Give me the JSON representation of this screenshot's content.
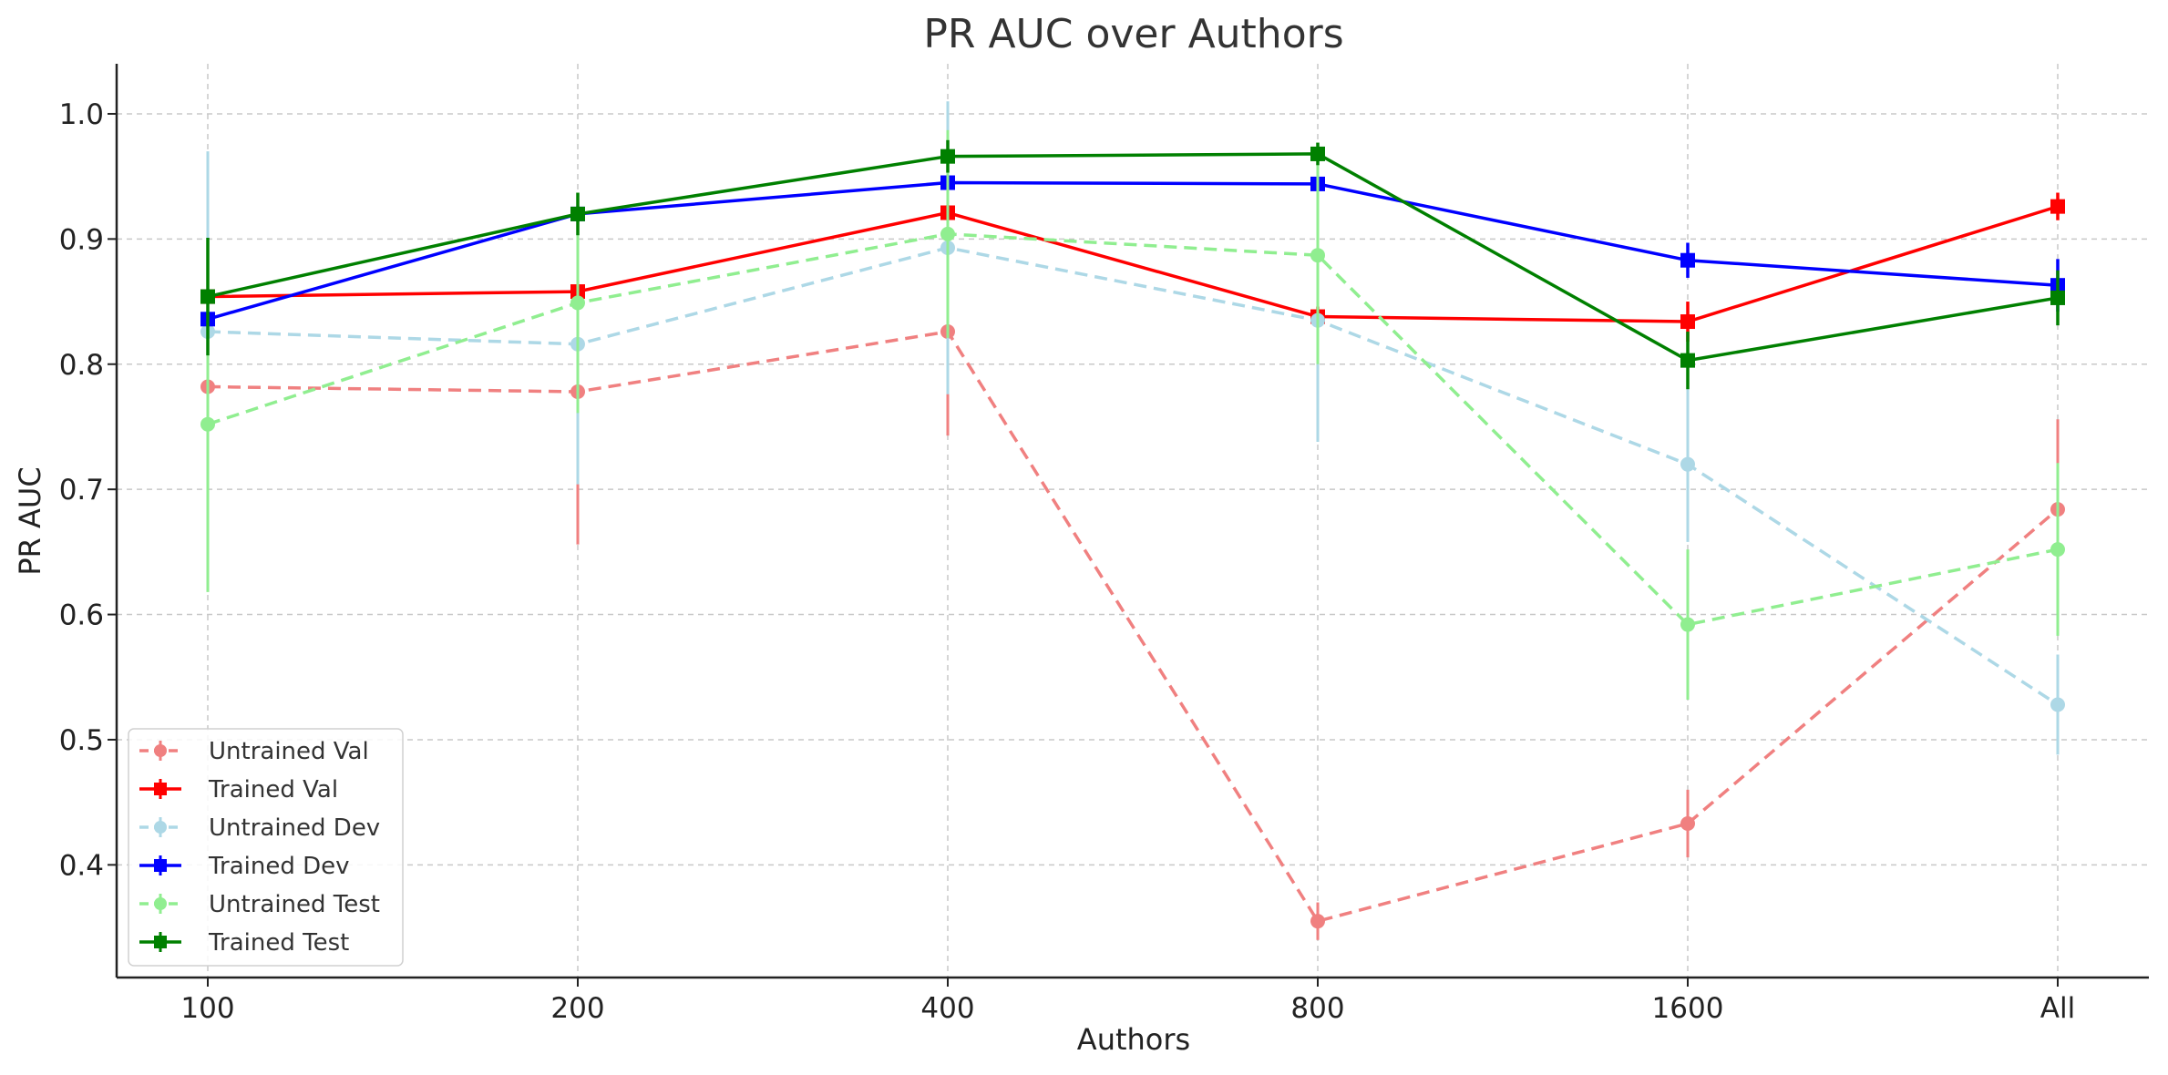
{
  "chart_data": {
    "type": "line",
    "title": "PR AUC over Authors",
    "xlabel": "Authors",
    "ylabel": "PR AUC",
    "categories": [
      "100",
      "200",
      "400",
      "800",
      "1600",
      "All"
    ],
    "yticks": [
      "0.4",
      "0.5",
      "0.6",
      "0.7",
      "0.8",
      "0.9",
      "1.0"
    ],
    "ylim": [
      0.31,
      1.04
    ],
    "grid": true,
    "legend_position": "lower-left",
    "series": [
      {
        "name": "Untrained Val",
        "color": "#f08080",
        "dashed": true,
        "marker": "circle",
        "values": [
          0.782,
          0.778,
          0.826,
          0.355,
          0.433,
          0.684
        ],
        "errors": [
          0.0,
          0.122,
          0.083,
          0.015,
          0.027,
          0.072
        ]
      },
      {
        "name": "Trained Val",
        "color": "#ff0000",
        "dashed": false,
        "marker": "square",
        "values": [
          0.854,
          0.858,
          0.921,
          0.838,
          0.834,
          0.926
        ],
        "errors": [
          0.0,
          0.005,
          0.006,
          0.008,
          0.016,
          0.011
        ]
      },
      {
        "name": "Untrained Dev",
        "color": "#add8e6",
        "dashed": true,
        "marker": "circle",
        "values": [
          0.826,
          0.816,
          0.893,
          0.835,
          0.72,
          0.528
        ],
        "errors": [
          0.144,
          0.112,
          0.117,
          0.097,
          0.062,
          0.04
        ]
      },
      {
        "name": "Trained Dev",
        "color": "#0000ff",
        "dashed": false,
        "marker": "square",
        "values": [
          0.836,
          0.92,
          0.945,
          0.944,
          0.883,
          0.863
        ],
        "errors": [
          0.005,
          0.006,
          0.004,
          0.003,
          0.014,
          0.021
        ]
      },
      {
        "name": "Untrained Test",
        "color": "#90ee90",
        "dashed": true,
        "marker": "circle",
        "values": [
          0.752,
          0.849,
          0.904,
          0.887,
          0.592,
          0.652
        ],
        "errors": [
          0.134,
          0.088,
          0.083,
          0.087,
          0.06,
          0.069
        ]
      },
      {
        "name": "Trained Test",
        "color": "#008000",
        "dashed": false,
        "marker": "square",
        "values": [
          0.854,
          0.92,
          0.966,
          0.968,
          0.803,
          0.853
        ],
        "errors": [
          0.047,
          0.017,
          0.013,
          0.009,
          0.023,
          0.022
        ]
      }
    ]
  }
}
